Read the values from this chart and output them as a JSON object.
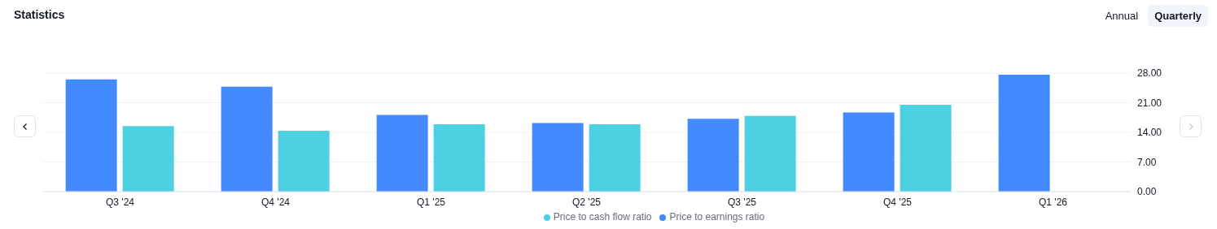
{
  "chart_data": {
    "type": "bar",
    "title": "Statistics",
    "annotations": [
      "Annual",
      "Quarterly"
    ],
    "categories": [
      "Q3 '24",
      "Q4 '24",
      "Q1 '25",
      "Q2 '25",
      "Q3 '25",
      "Q4 '25",
      "Q1 '26"
    ],
    "series": [
      {
        "name": "Price to earnings ratio",
        "color": "#448aff",
        "values": [
          26.5,
          24.8,
          18.1,
          16.2,
          17.2,
          18.7,
          27.6
        ]
      },
      {
        "name": "Price to cash flow ratio",
        "color": "#4dd0e1",
        "values": [
          15.5,
          14.4,
          15.9,
          15.9,
          17.9,
          20.5,
          null
        ]
      }
    ],
    "ylim": [
      0,
      28
    ],
    "yticks": [
      {
        "value": 0,
        "label": "0.00"
      },
      {
        "value": 7,
        "label": "7.00"
      },
      {
        "value": 14,
        "label": "14.00"
      },
      {
        "value": 21,
        "label": "21.00"
      },
      {
        "value": 28,
        "label": "28.00"
      }
    ],
    "grid": "y",
    "legend": "bottom"
  }
}
